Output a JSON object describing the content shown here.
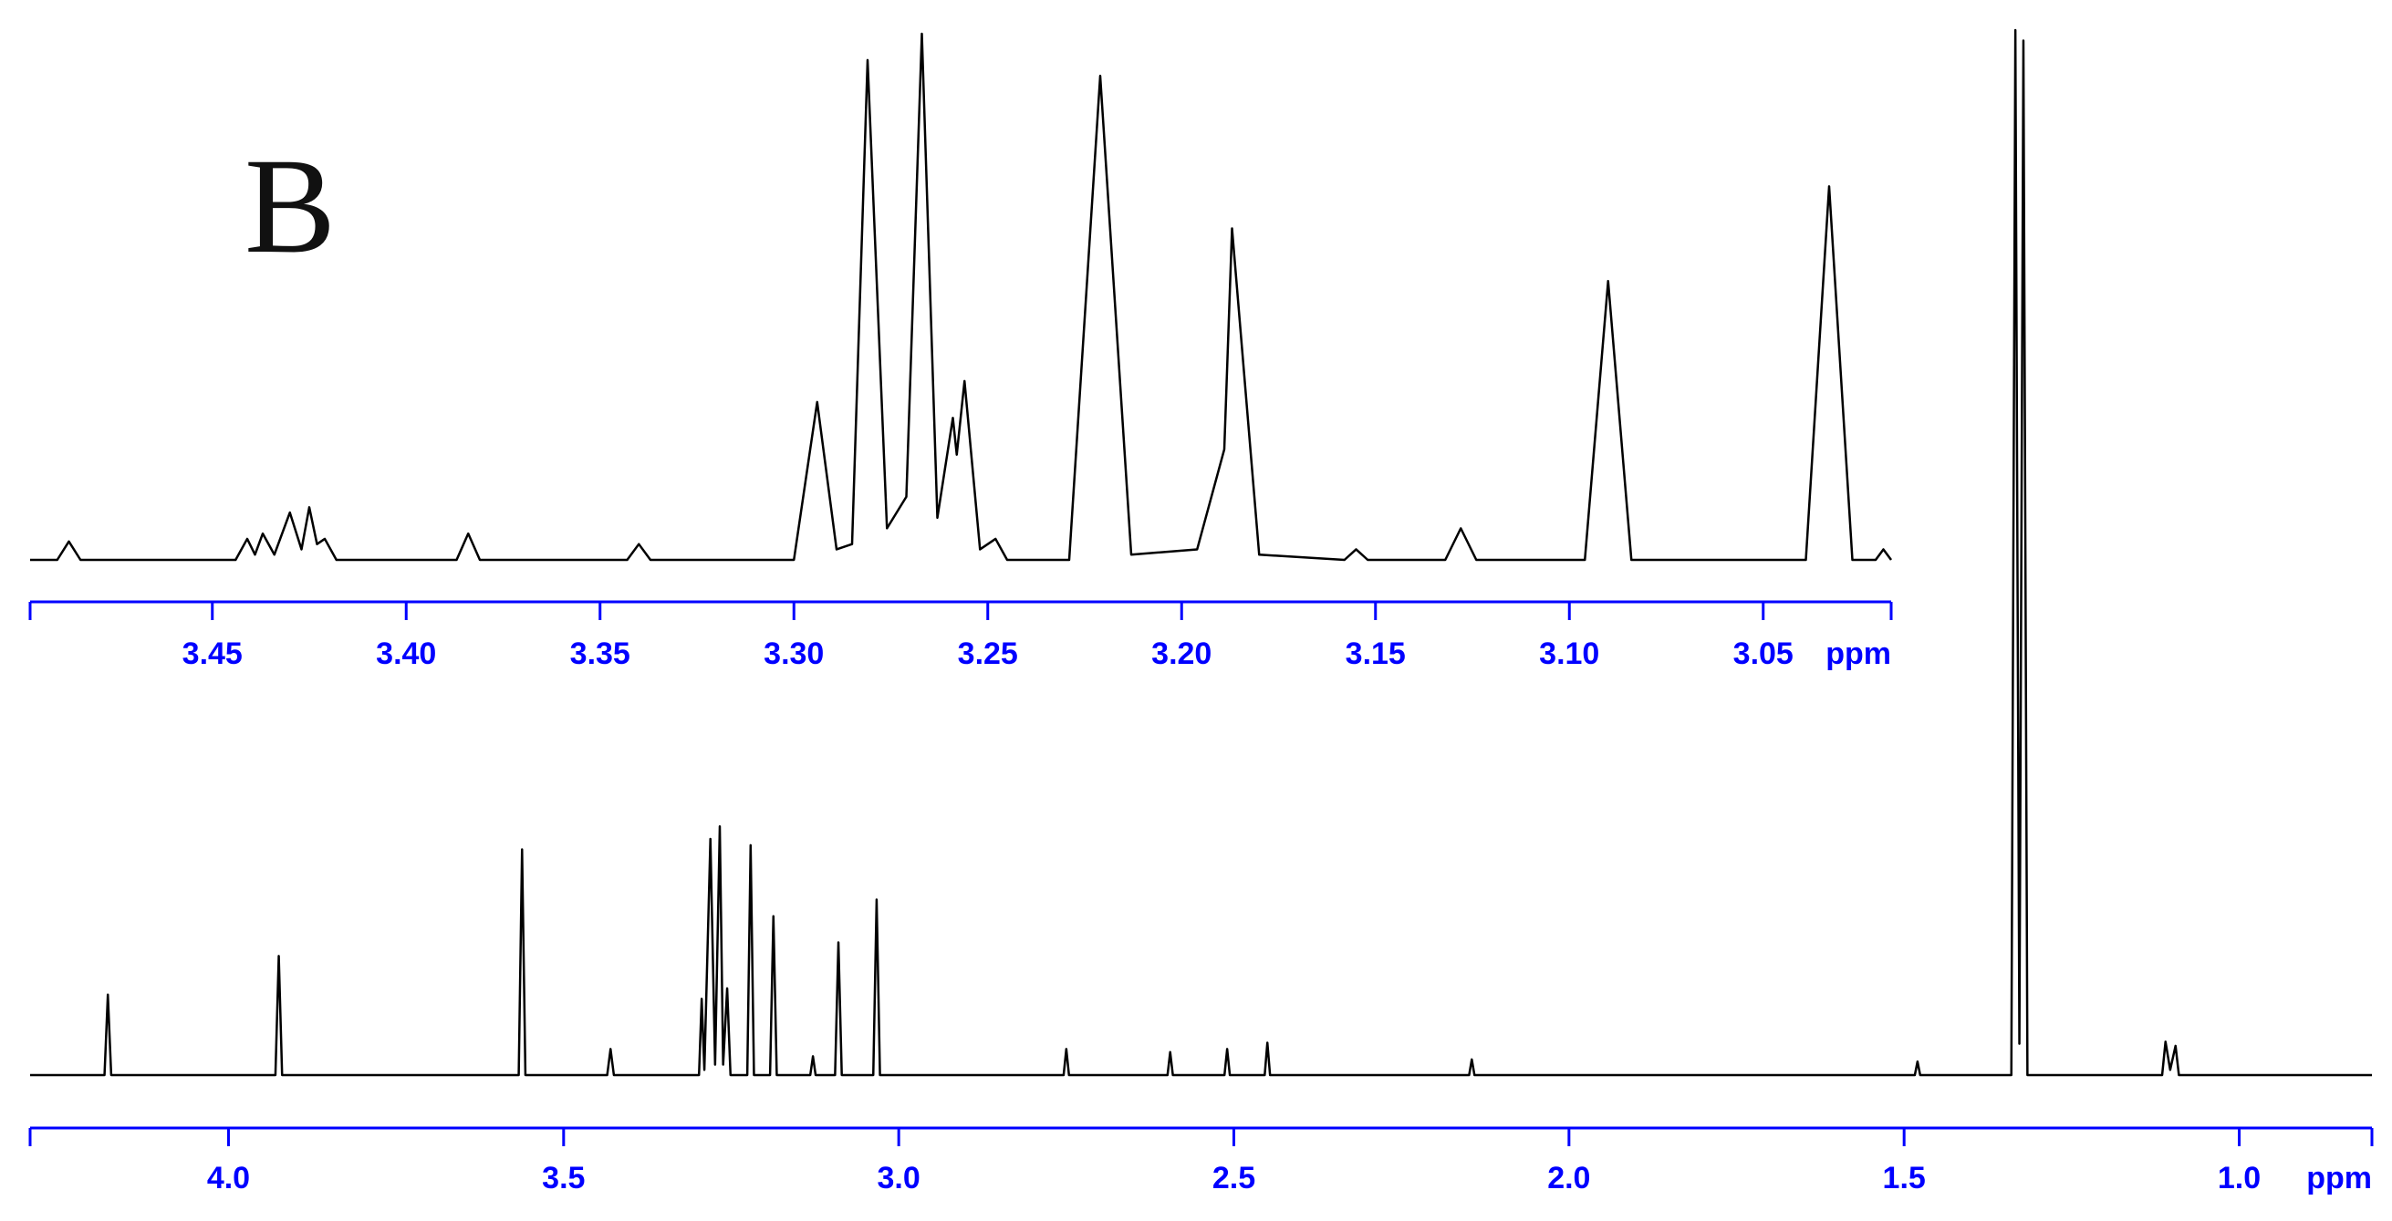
{
  "chart_data": [
    {
      "type": "line",
      "annotation": "B",
      "x_label": "ppm",
      "color": "#000000",
      "axis_color": "#0000ff",
      "xlim": [
        3.497,
        3.017
      ],
      "ylim": [
        0,
        100
      ],
      "xticks": [
        3.45,
        {
          "value": 3.4,
          "label": "3.40"
        },
        3.35,
        {
          "value": 3.3,
          "label": "3.30"
        },
        3.25,
        {
          "value": 3.2,
          "label": "3.20"
        },
        3.15,
        {
          "value": 3.1,
          "label": "3.10"
        },
        3.05
      ],
      "x": [
        3.497,
        3.49,
        3.487,
        3.484,
        3.444,
        3.441,
        3.439,
        3.437,
        3.434,
        3.43,
        3.427,
        3.425,
        3.423,
        3.421,
        3.418,
        3.387,
        3.384,
        3.381,
        3.343,
        3.34,
        3.337,
        3.3,
        3.294,
        3.289,
        3.285,
        3.281,
        3.276,
        3.271,
        3.267,
        3.263,
        3.259,
        3.258,
        3.256,
        3.252,
        3.248,
        3.245,
        3.229,
        3.221,
        3.213,
        3.196,
        3.189,
        3.187,
        3.18,
        3.158,
        3.155,
        3.152,
        3.132,
        3.128,
        3.124,
        3.096,
        3.09,
        3.084,
        3.039,
        3.033,
        3.027,
        3.021,
        3.019,
        3.017
      ],
      "values": [
        0,
        0,
        3.5,
        0,
        0,
        4,
        1,
        5,
        1,
        9,
        2,
        10,
        3,
        4,
        0,
        0,
        5,
        0,
        0,
        3,
        0,
        0,
        30,
        2,
        3,
        95,
        6,
        12,
        100,
        8,
        27,
        20,
        34,
        2,
        4,
        0,
        0,
        92,
        1,
        2,
        21,
        63,
        1,
        0,
        2,
        0,
        0,
        6,
        0,
        0,
        53,
        0,
        0,
        71,
        0,
        0,
        2,
        0
      ]
    },
    {
      "type": "line",
      "x_label": "ppm",
      "color": "#000000",
      "axis_color": "#0000ff",
      "xlim": [
        4.296,
        0.802
      ],
      "ylim": [
        0,
        100
      ],
      "xticks": [
        {
          "value": 4,
          "label": "4.0"
        },
        3.5,
        {
          "value": 3,
          "label": "3.0"
        },
        2.5,
        {
          "value": 2,
          "label": "2.0"
        },
        1.5,
        {
          "value": 1,
          "label": "1.0"
        }
      ],
      "x": [
        4.296,
        4.185,
        4.18,
        4.175,
        3.93,
        3.925,
        3.92,
        3.567,
        3.562,
        3.557,
        3.435,
        3.43,
        3.425,
        3.298,
        3.294,
        3.29,
        3.281,
        3.274,
        3.267,
        3.262,
        3.256,
        3.251,
        3.226,
        3.221,
        3.216,
        3.192,
        3.187,
        3.182,
        3.132,
        3.128,
        3.124,
        3.095,
        3.09,
        3.085,
        3.038,
        3.033,
        3.028,
        2.754,
        2.75,
        2.746,
        2.599,
        2.595,
        2.591,
        2.514,
        2.51,
        2.506,
        2.454,
        2.45,
        2.446,
        2.149,
        2.145,
        2.141,
        1.484,
        1.48,
        1.476,
        1.34,
        1.334,
        1.328,
        1.322,
        1.316,
        1.115,
        1.11,
        1.103,
        1.095,
        1.09,
        0.802
      ],
      "values": [
        0,
        0,
        7.7,
        0,
        0,
        11.4,
        0,
        0,
        21.6,
        0,
        0,
        2.5,
        0,
        0,
        7.3,
        0.5,
        22.6,
        1,
        23.8,
        1,
        8.3,
        0,
        0,
        22,
        0,
        0,
        15.2,
        0,
        0,
        1.8,
        0,
        0,
        12.7,
        0,
        0,
        16.8,
        0,
        0,
        2.5,
        0,
        0,
        2.2,
        0,
        0,
        2.5,
        0,
        0,
        3.1,
        0,
        0,
        1.5,
        0,
        0,
        1.3,
        0,
        0,
        100,
        3,
        99,
        0,
        0,
        3.2,
        0.5,
        2.8,
        0,
        0
      ]
    }
  ]
}
